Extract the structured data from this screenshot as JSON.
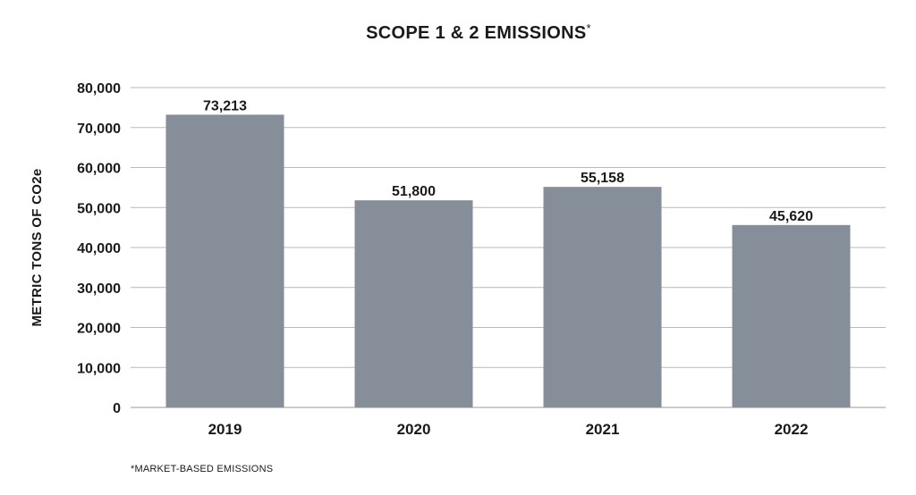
{
  "chart_data": {
    "type": "bar",
    "title": "SCOPE 1 & 2 EMISSIONS",
    "title_mark": "*",
    "xlabel": "",
    "ylabel": "METRIC TONS OF CO2e",
    "categories": [
      "2019",
      "2020",
      "2021",
      "2022"
    ],
    "values": [
      73213,
      51800,
      55158,
      45620
    ],
    "value_labels": [
      "73,213",
      "51,800",
      "55,158",
      "45,620"
    ],
    "ylim": [
      0,
      80000
    ],
    "yticks": [
      0,
      10000,
      20000,
      30000,
      40000,
      50000,
      60000,
      70000,
      80000
    ],
    "ytick_labels": [
      "0",
      "10,000",
      "20,000",
      "30,000",
      "40,000",
      "50,000",
      "60,000",
      "70,000",
      "80,000"
    ],
    "grid": true,
    "bar_color": "#868e99",
    "grid_color": "#b9b9b9",
    "footnote": "*MARKET-BASED EMISSIONS"
  }
}
